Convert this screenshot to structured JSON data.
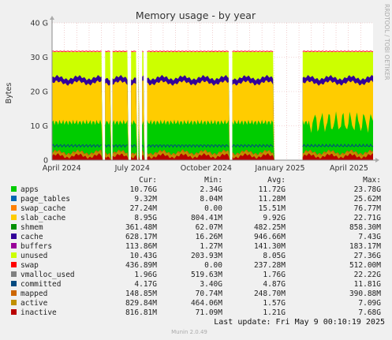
{
  "chart_data": {
    "type": "area",
    "title": "Memory usage - by year",
    "ylabel": "Bytes",
    "side_label": "RRDTOOL / TOBI OETIKER",
    "ylim": [
      0,
      40
    ],
    "y_ticks": [
      "0",
      "10 G",
      "20 G",
      "30 G",
      "40 G"
    ],
    "x_ticks": [
      "April 2024",
      "July 2024",
      "October 2024",
      "January 2025",
      "April 2025"
    ],
    "x_tick_fracs": [
      0.03,
      0.25,
      0.48,
      0.71,
      0.925
    ],
    "gaps": [
      [
        0.155,
        0.162
      ],
      [
        0.182,
        0.188
      ],
      [
        0.238,
        0.244
      ],
      [
        0.262,
        0.268
      ],
      [
        0.273,
        0.279
      ],
      [
        0.285,
        0.29
      ],
      [
        0.29,
        0.294
      ],
      [
        0.553,
        0.558
      ],
      [
        0.69,
        0.73
      ],
      [
        0.73,
        0.78
      ]
    ],
    "layers_top_gb": [
      {
        "name": "inactive",
        "color": "#b90000",
        "level": 1.2
      },
      {
        "name": "active",
        "color": "#c09000",
        "level": 2.0
      },
      {
        "name": "mapped",
        "color": "#cc6600",
        "level": 2.3
      },
      {
        "name": "apps",
        "color": "#00cc00",
        "level": 11.5
      },
      {
        "name": "slab_cache",
        "color": "#ffcc00",
        "level": 22.5
      },
      {
        "name": "cache",
        "color": "#330099",
        "level": 24.0
      },
      {
        "name": "unused",
        "color": "#ccff00",
        "level": 31.5
      }
    ],
    "committed_line": {
      "name": "committed",
      "color": "#004a80",
      "level": 4.2
    },
    "swap_line": {
      "name": "swap",
      "color": "#ff0000",
      "level": 31.7
    },
    "columns": [
      "Cur:",
      "Min:",
      "Avg:",
      "Max:"
    ],
    "legend": [
      {
        "name": "apps",
        "color": "#00cc00",
        "cur": "10.76G",
        "min": "2.34G",
        "avg": "11.72G",
        "max": "23.78G"
      },
      {
        "name": "page_tables",
        "color": "#0066b3",
        "cur": "9.32M",
        "min": "8.04M",
        "avg": "11.28M",
        "max": "25.62M"
      },
      {
        "name": "swap_cache",
        "color": "#ff8000",
        "cur": "27.24M",
        "min": "0.00",
        "avg": "15.51M",
        "max": "76.77M"
      },
      {
        "name": "slab_cache",
        "color": "#ffcc00",
        "cur": "8.95G",
        "min": "804.41M",
        "avg": "9.92G",
        "max": "22.71G"
      },
      {
        "name": "shmem",
        "color": "#008f00",
        "cur": "361.48M",
        "min": "62.07M",
        "avg": "482.25M",
        "max": "858.30M"
      },
      {
        "name": "cache",
        "color": "#330099",
        "cur": "628.17M",
        "min": "16.26M",
        "avg": "946.66M",
        "max": "7.43G"
      },
      {
        "name": "buffers",
        "color": "#990099",
        "cur": "113.86M",
        "min": "1.27M",
        "avg": "141.30M",
        "max": "183.17M"
      },
      {
        "name": "unused",
        "color": "#ccff00",
        "cur": "10.43G",
        "min": "203.93M",
        "avg": "8.05G",
        "max": "27.36G"
      },
      {
        "name": "swap",
        "color": "#ff0000",
        "cur": "436.89M",
        "min": "0.00",
        "avg": "237.28M",
        "max": "512.00M"
      },
      {
        "name": "vmalloc_used",
        "color": "#808080",
        "cur": "1.96G",
        "min": "519.63M",
        "avg": "1.76G",
        "max": "22.22G"
      },
      {
        "name": "committed",
        "color": "#004a80",
        "cur": "4.17G",
        "min": "3.40G",
        "avg": "4.87G",
        "max": "11.81G"
      },
      {
        "name": "mapped",
        "color": "#cc6600",
        "cur": "148.85M",
        "min": "70.74M",
        "avg": "248.70M",
        "max": "390.88M"
      },
      {
        "name": "active",
        "color": "#c09000",
        "cur": "829.84M",
        "min": "464.06M",
        "avg": "1.57G",
        "max": "7.09G"
      },
      {
        "name": "inactive",
        "color": "#b90000",
        "cur": "816.81M",
        "min": "71.09M",
        "avg": "1.21G",
        "max": "7.68G"
      }
    ]
  },
  "footer": {
    "last_update": "Last update: Fri May  9 00:10:19 2025",
    "munin": "Munin 2.0.49"
  }
}
